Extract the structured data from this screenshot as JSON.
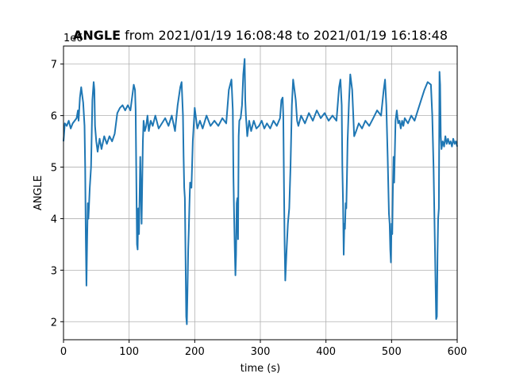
{
  "chart_data": {
    "type": "line",
    "title_bold": "ANGLE",
    "title_rest": " from 2021/01/19 16:08:48 to 2021/01/19 16:18:48",
    "offset_label": "1e6",
    "xlabel": "time (s)",
    "ylabel": "ANGLE",
    "xlim": [
      0,
      600
    ],
    "ylim": [
      1.65,
      7.35
    ],
    "xticks": [
      0,
      100,
      200,
      300,
      400,
      500,
      600
    ],
    "yticks": [
      2,
      3,
      4,
      5,
      6,
      7
    ],
    "grid": true,
    "line_color": "#1f77b4",
    "series": [
      {
        "x": [
          0,
          2,
          5,
          8,
          11,
          14,
          17,
          20,
          22,
          23,
          25,
          27,
          28,
          30,
          32,
          33,
          34,
          35,
          36,
          37,
          38,
          40,
          42,
          44,
          46,
          47,
          48,
          50,
          52,
          55,
          58,
          62,
          66,
          70,
          74,
          78,
          82,
          86,
          90,
          94,
          98,
          102,
          105,
          107,
          109,
          110,
          111,
          112,
          113,
          114,
          115,
          117,
          119,
          121,
          122,
          124,
          126,
          128,
          130,
          133,
          136,
          140,
          145,
          150,
          155,
          160,
          165,
          170,
          174,
          178,
          180,
          182,
          183,
          184,
          185,
          186,
          187,
          188,
          189,
          190,
          191,
          192,
          193,
          195,
          197,
          200,
          204,
          208,
          212,
          218,
          224,
          230,
          236,
          242,
          248,
          252,
          256,
          258,
          259,
          260,
          261,
          262,
          263,
          264,
          265,
          266,
          267,
          268,
          270,
          272,
          274,
          276,
          277,
          278,
          280,
          283,
          286,
          290,
          294,
          298,
          302,
          306,
          310,
          315,
          320,
          325,
          330,
          332,
          334,
          335,
          336,
          337,
          338,
          340,
          342,
          344,
          346,
          348,
          350,
          352,
          354,
          356,
          358,
          362,
          368,
          374,
          380,
          386,
          392,
          398,
          404,
          410,
          416,
          420,
          422,
          424,
          425,
          426,
          427,
          428,
          429,
          430,
          431,
          432,
          433,
          435,
          437,
          440,
          443,
          446,
          450,
          455,
          460,
          466,
          472,
          478,
          484,
          488,
          490,
          492,
          494,
          496,
          497,
          498,
          499,
          500,
          501,
          502,
          503,
          504,
          506,
          508,
          510,
          512,
          514,
          516,
          518,
          520,
          525,
          530,
          535,
          540,
          545,
          550,
          555,
          560,
          562,
          564,
          566,
          568,
          569,
          570,
          571,
          572,
          573,
          574,
          575,
          576,
          578,
          580,
          582,
          584,
          586,
          588,
          590,
          592,
          594,
          596,
          598,
          600
        ],
        "y": [
          5.5,
          5.85,
          5.8,
          5.9,
          5.75,
          5.85,
          5.9,
          5.95,
          6.1,
          5.9,
          6.35,
          6.55,
          6.45,
          6.25,
          5.8,
          5.0,
          3.6,
          2.7,
          3.6,
          4.3,
          4.0,
          4.6,
          5.0,
          6.3,
          6.65,
          6.5,
          5.8,
          5.5,
          5.3,
          5.55,
          5.35,
          5.6,
          5.45,
          5.6,
          5.5,
          5.65,
          6.05,
          6.15,
          6.2,
          6.1,
          6.2,
          6.1,
          6.4,
          6.6,
          6.5,
          6.1,
          4.7,
          3.5,
          3.4,
          4.2,
          3.7,
          5.2,
          3.9,
          5.5,
          5.9,
          5.7,
          5.8,
          6.0,
          5.7,
          5.9,
          5.8,
          6.0,
          5.75,
          5.85,
          5.95,
          5.8,
          6.0,
          5.7,
          6.2,
          6.55,
          6.65,
          6.0,
          5.2,
          4.6,
          4.4,
          3.2,
          2.1,
          1.95,
          2.6,
          3.4,
          3.8,
          4.3,
          4.7,
          4.6,
          5.5,
          6.15,
          5.75,
          5.9,
          5.75,
          6.0,
          5.8,
          5.9,
          5.8,
          5.95,
          5.85,
          6.5,
          6.7,
          6.1,
          4.8,
          4.1,
          3.4,
          2.9,
          3.3,
          4.3,
          4.4,
          3.6,
          5.6,
          5.9,
          5.95,
          6.2,
          6.8,
          7.1,
          6.3,
          6.0,
          5.6,
          5.9,
          5.7,
          5.9,
          5.75,
          5.8,
          5.9,
          5.75,
          5.85,
          5.75,
          5.9,
          5.8,
          5.95,
          6.3,
          6.35,
          6.0,
          4.6,
          3.5,
          2.8,
          3.4,
          3.9,
          4.2,
          5.0,
          6.2,
          6.7,
          6.5,
          6.3,
          5.9,
          5.8,
          6.0,
          5.85,
          6.05,
          5.9,
          6.1,
          5.95,
          6.05,
          5.9,
          6.0,
          5.9,
          6.55,
          6.7,
          6.2,
          5.0,
          4.3,
          3.3,
          3.9,
          3.8,
          4.3,
          4.2,
          4.8,
          5.5,
          6.25,
          6.8,
          6.5,
          5.6,
          5.7,
          5.85,
          5.75,
          5.9,
          5.8,
          5.95,
          6.1,
          6.0,
          6.5,
          6.7,
          6.2,
          5.2,
          4.1,
          3.9,
          3.4,
          3.15,
          3.9,
          3.7,
          4.6,
          5.2,
          4.7,
          5.9,
          6.1,
          5.85,
          5.9,
          5.75,
          5.9,
          5.8,
          5.95,
          5.85,
          6.0,
          5.9,
          6.1,
          6.3,
          6.5,
          6.65,
          6.6,
          6.0,
          5.0,
          3.5,
          2.05,
          2.1,
          3.3,
          4.0,
          4.2,
          6.85,
          6.6,
          5.6,
          5.35,
          5.5,
          5.4,
          5.6,
          5.45,
          5.55,
          5.45,
          5.5,
          5.4,
          5.55,
          5.45,
          5.5,
          5.4
        ]
      }
    ]
  }
}
